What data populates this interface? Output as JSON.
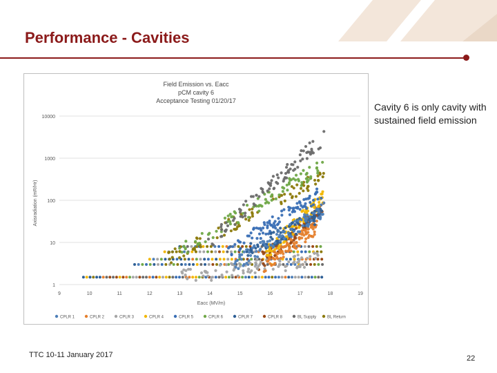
{
  "slide": {
    "title": "Performance - Cavities",
    "note": "Cavity 6 is only cavity with sustained field emission",
    "footer": "TTC 10-11 January 2017",
    "page_number": "22"
  },
  "colors": {
    "title": "#8b1a1a",
    "deco": "#f3e6da"
  },
  "chart_data": {
    "type": "scatter",
    "title": [
      "Field Emission vs. Eacc",
      "pCM cavity 6",
      "Acceptance Testing 01/20/17"
    ],
    "xlabel": "Eacc (MV/m)",
    "ylabel": "Axisradiation (mR/Hr)",
    "xlim": [
      9,
      19
    ],
    "ylim": [
      1,
      10000
    ],
    "yscale": "log",
    "grid": true,
    "legend_position": "bottom",
    "x_ticks": [
      "9",
      "10",
      "11",
      "12",
      "13",
      "14",
      "15",
      "16",
      "17",
      "18",
      "19"
    ],
    "y_ticks": [
      "1",
      "10",
      "100",
      "1000",
      "10000"
    ],
    "series": [
      {
        "name": "CPLR 1",
        "color": "#4e7fb8",
        "onset": 14.8,
        "y_at_onset": 3,
        "y_at_max": 60,
        "max_x": 17.8
      },
      {
        "name": "CPLR 2",
        "color": "#e57f2d",
        "onset": 15.8,
        "y_at_onset": 3,
        "y_at_max": 25,
        "max_x": 17.6
      },
      {
        "name": "CPLR 3",
        "color": "#a5a5a5",
        "onset": 13.0,
        "y_at_onset": 1.5,
        "y_at_max": 4,
        "max_x": 17.6
      },
      {
        "name": "CPLR 4",
        "color": "#f2b705",
        "onset": 15.8,
        "y_at_onset": 5,
        "y_at_max": 120,
        "max_x": 17.8
      },
      {
        "name": "CPLR 5",
        "color": "#3a6fb5",
        "onset": 14.6,
        "y_at_onset": 6,
        "y_at_max": 160,
        "max_x": 17.8
      },
      {
        "name": "CPLR 6",
        "color": "#70a848",
        "onset": 12.8,
        "y_at_onset": 5,
        "y_at_max": 700,
        "max_x": 17.8
      },
      {
        "name": "CPLR 7",
        "color": "#2e5f95",
        "onset": 15.0,
        "y_at_onset": 5,
        "y_at_max": 50,
        "max_x": 17.8
      },
      {
        "name": "CPLR 8",
        "color": "#9b4a16",
        "onset": 15.6,
        "y_at_onset": 3,
        "y_at_max": 70,
        "max_x": 17.8
      },
      {
        "name": "BL Supply",
        "color": "#6b6b6b",
        "onset": 13.8,
        "y_at_onset": 8,
        "y_at_max": 3200,
        "max_x": 17.8
      },
      {
        "name": "BL Return",
        "color": "#8c7a0c",
        "onset": 12.6,
        "y_at_onset": 4,
        "y_at_max": 400,
        "max_x": 17.8
      }
    ],
    "baseline_y": 1.5,
    "baseline_x_start": 9.8
  }
}
